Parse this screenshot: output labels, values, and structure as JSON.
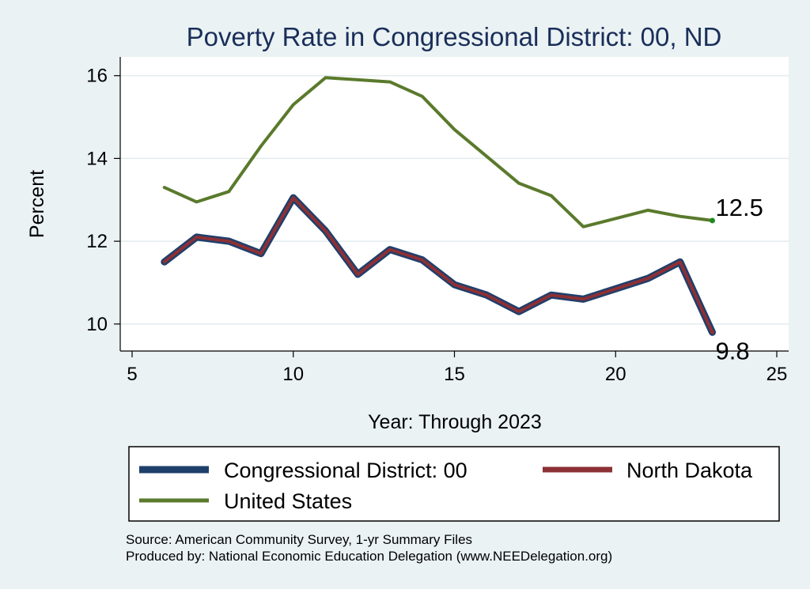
{
  "chart_data": {
    "type": "line",
    "title": "Poverty Rate in Congressional District:  00, ND",
    "xlabel": "Year: Through 2023",
    "ylabel": "Percent",
    "xlim": [
      5,
      25
    ],
    "ylim": [
      9.5,
      16.3
    ],
    "xticks": [
      "5",
      "10",
      "15",
      "20",
      "25"
    ],
    "yticks": [
      "10",
      "12",
      "14",
      "16"
    ],
    "grid": true,
    "legend_position": "bottom",
    "series": [
      {
        "name": "Congressional District:  00",
        "color": "#1f3f6b",
        "x": [
          6,
          7,
          8,
          9,
          10,
          11,
          12,
          13,
          14,
          15,
          16,
          17,
          18,
          19,
          20,
          21,
          22,
          23
        ],
        "values": [
          11.5,
          12.1,
          12.0,
          11.7,
          13.05,
          12.25,
          11.2,
          11.8,
          11.55,
          10.95,
          10.7,
          10.3,
          10.7,
          10.6,
          10.85,
          11.1,
          11.5,
          9.8
        ]
      },
      {
        "name": "North Dakota",
        "color": "#8c3035",
        "x": [
          6,
          7,
          8,
          9,
          10,
          11,
          12,
          13,
          14,
          15,
          16,
          17,
          18,
          19,
          20,
          21,
          22,
          23
        ],
        "values": [
          11.5,
          12.1,
          12.0,
          11.7,
          13.05,
          12.25,
          11.2,
          11.8,
          11.55,
          10.95,
          10.7,
          10.3,
          10.7,
          10.6,
          10.85,
          11.1,
          11.5,
          9.8
        ]
      },
      {
        "name": "United States",
        "color": "#5a7a2c",
        "x": [
          6,
          7,
          8,
          9,
          10,
          11,
          12,
          13,
          14,
          15,
          16,
          17,
          18,
          19,
          21,
          22,
          23
        ],
        "values": [
          13.3,
          12.95,
          13.2,
          14.3,
          15.3,
          15.95,
          15.9,
          15.85,
          15.5,
          14.7,
          14.05,
          13.4,
          13.1,
          12.35,
          12.75,
          12.6,
          12.5
        ]
      }
    ],
    "annotations": [
      {
        "text": "12.5",
        "x": 23,
        "y": 12.5
      },
      {
        "text": "9.8",
        "x": 23,
        "y": 9.8
      }
    ]
  },
  "notes": {
    "source": "Source: American Community Survey, 1-yr Summary Files",
    "produced": "Produced by: National Economic Education Delegation (www.NEEDelegation.org)"
  }
}
